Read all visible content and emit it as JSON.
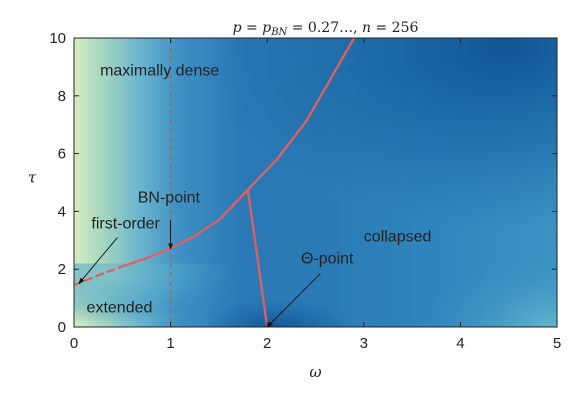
{
  "chart_data": {
    "type": "heatmap",
    "title": "p = p_BN = 0.27…, n = 256",
    "title_parts": {
      "p1": "p",
      "eq1": " = ",
      "p2": "p",
      "sub": "BN",
      "mid": " = 0.27…, ",
      "n": "n",
      "eq2": " = 256"
    },
    "xlabel": "ω",
    "ylabel": "τ",
    "xlim": [
      0,
      5
    ],
    "ylim": [
      0,
      10
    ],
    "xticks": [
      {
        "value": 0,
        "label": "0"
      },
      {
        "value": 1,
        "label": "1"
      },
      {
        "value": 2,
        "label": "2"
      },
      {
        "value": 3,
        "label": "3"
      },
      {
        "value": 4,
        "label": "4"
      },
      {
        "value": 5,
        "label": "5"
      }
    ],
    "yticks": [
      {
        "value": 0,
        "label": "0"
      },
      {
        "value": 2,
        "label": "2"
      },
      {
        "value": 4,
        "label": "4"
      },
      {
        "value": 6,
        "label": "6"
      },
      {
        "value": 8,
        "label": "8"
      },
      {
        "value": 10,
        "label": "10"
      }
    ],
    "colormap": [
      "#0c4f8e",
      "#1765a8",
      "#2b7fb8",
      "#4aa3cb",
      "#7fc4c9",
      "#b9e0b8",
      "#e2f3cc"
    ],
    "boundary_color": "#e0605f",
    "dashed_reference": {
      "x": 1,
      "color": "#777777"
    },
    "phase_boundaries": [
      {
        "name": "first-order-dashed",
        "style": "dashed",
        "points": [
          [
            0,
            1.45
          ],
          [
            0.3,
            1.85
          ],
          [
            0.5,
            2.1
          ]
        ]
      },
      {
        "name": "extended-to-dense",
        "style": "solid",
        "points": [
          [
            0.5,
            2.1
          ],
          [
            0.75,
            2.38
          ],
          [
            1.0,
            2.72
          ],
          [
            1.25,
            3.15
          ],
          [
            1.5,
            3.7
          ],
          [
            1.8,
            4.75
          ]
        ]
      },
      {
        "name": "dense-to-collapsed",
        "style": "solid",
        "points": [
          [
            1.8,
            4.75
          ],
          [
            2.1,
            5.8
          ],
          [
            2.4,
            7.1
          ],
          [
            2.65,
            8.55
          ],
          [
            2.9,
            10.0
          ]
        ]
      },
      {
        "name": "theta-line",
        "style": "solid",
        "points": [
          [
            1.8,
            4.75
          ],
          [
            2.0,
            0
          ]
        ]
      }
    ],
    "annotations": [
      {
        "id": "maximally-dense",
        "text": "maximally dense",
        "x": 0.27,
        "y": 8.7
      },
      {
        "id": "bn-point",
        "text": "BN-point",
        "x": 0.66,
        "y": 4.3
      },
      {
        "id": "first-order",
        "text": "first-order",
        "x": 0.18,
        "y": 3.4
      },
      {
        "id": "collapsed",
        "text": "collapsed",
        "x": 3.0,
        "y": 2.95
      },
      {
        "id": "theta-point",
        "text": "Θ-point",
        "x": 2.35,
        "y": 2.2
      },
      {
        "id": "extended",
        "text": "extended",
        "x": 0.13,
        "y": 0.5
      }
    ],
    "arrows": [
      {
        "id": "first-order-arrow",
        "from": [
          0.45,
          3.1
        ],
        "to": [
          0.05,
          1.5
        ]
      },
      {
        "id": "bn-point-arrow",
        "from": [
          1.0,
          3.7
        ],
        "to": [
          1.0,
          2.7
        ]
      },
      {
        "id": "theta-point-arrow",
        "from": [
          2.55,
          1.85
        ],
        "to": [
          2.0,
          0.0
        ]
      }
    ]
  }
}
